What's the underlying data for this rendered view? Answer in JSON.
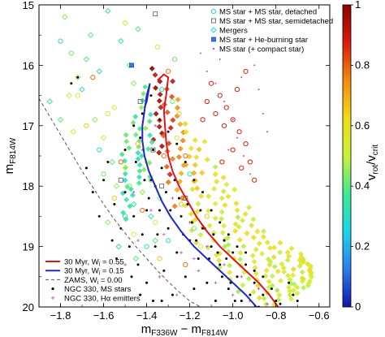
{
  "chart_data": {
    "type": "scatter",
    "xlabel": "m_F336W − m_F814W",
    "ylabel": "m_F814W",
    "colorbar_label": "v_rot/v_crit",
    "xlim": [
      -1.9,
      -0.55
    ],
    "ylim": [
      20,
      15
    ],
    "y_inverted": true,
    "x_ticks": [
      "−1.8",
      "−1.6",
      "−1.4",
      "−1.2",
      "−1.0",
      "−0.8",
      "−0.6"
    ],
    "y_ticks": [
      "15",
      "16",
      "17",
      "18",
      "19",
      "20"
    ],
    "colorbar_ticks": [
      "0",
      "0.2",
      "0.4",
      "0.6",
      "0.8",
      "1"
    ],
    "colorbar_range": [
      0,
      1
    ],
    "colorbar_colors": [
      "#1414a8",
      "#2a7df0",
      "#1fd6e8",
      "#3fe88f",
      "#c9f23a",
      "#f2dc1a",
      "#f58a0e",
      "#d81c0c",
      "#8b0000"
    ],
    "grid": false,
    "legend_top": {
      "placement": "top-right",
      "entries": [
        {
          "label": "MS star + MS star, detached",
          "marker": "circle-open"
        },
        {
          "label": "MS star + MS star, semidetached",
          "marker": "square-open"
        },
        {
          "label": "Mergers",
          "marker": "diamond-open"
        },
        {
          "label": "MS star + He-burning star",
          "marker": "square-filled"
        },
        {
          "label": "MS star (+ compact star)",
          "marker": "dot"
        }
      ]
    },
    "legend_bottom": {
      "placement": "bottom-left",
      "entries": [
        {
          "label": "30 Myr, W",
          "sub": "i",
          "tail": " = 0.55",
          "color": "#e0141e",
          "style": "solid"
        },
        {
          "label": "30 Myr, W",
          "sub": "i",
          "tail": " = 0.15",
          "color": "#1e28c8",
          "style": "solid"
        },
        {
          "label": "ZAMS, W",
          "sub": "i",
          "tail": " = 0.00",
          "color": "#555555",
          "style": "dashed"
        },
        {
          "label": "NGC 330, MS stars",
          "color": "#000000",
          "style": "dot"
        },
        {
          "label": "NGC 330, Hα emitters",
          "color": "#cc44cc",
          "style": "cross"
        }
      ]
    },
    "isochrones": [
      {
        "name": "30 Myr, W_i = 0.55",
        "color": "#e0141e",
        "style": "solid",
        "points": [
          [
            -0.79,
            20
          ],
          [
            -0.83,
            19.8
          ],
          [
            -0.88,
            19.6
          ],
          [
            -0.94,
            19.4
          ],
          [
            -1.0,
            19.2
          ],
          [
            -1.06,
            19.0
          ],
          [
            -1.12,
            18.75
          ],
          [
            -1.17,
            18.5
          ],
          [
            -1.21,
            18.25
          ],
          [
            -1.25,
            18.0
          ],
          [
            -1.28,
            17.75
          ],
          [
            -1.3,
            17.5
          ],
          [
            -1.31,
            17.25
          ],
          [
            -1.315,
            17.0
          ],
          [
            -1.32,
            16.75
          ],
          [
            -1.31,
            16.5
          ],
          [
            -1.3,
            16.2
          ],
          [
            -1.32,
            16.15
          ],
          [
            -1.35,
            16.25
          ]
        ]
      },
      {
        "name": "30 Myr, W_i = 0.15",
        "color": "#1e28c8",
        "style": "solid",
        "points": [
          [
            -0.89,
            20
          ],
          [
            -0.94,
            19.8
          ],
          [
            -1.0,
            19.6
          ],
          [
            -1.06,
            19.4
          ],
          [
            -1.12,
            19.2
          ],
          [
            -1.18,
            19.0
          ],
          [
            -1.24,
            18.75
          ],
          [
            -1.29,
            18.5
          ],
          [
            -1.33,
            18.25
          ],
          [
            -1.36,
            18.0
          ],
          [
            -1.39,
            17.75
          ],
          [
            -1.41,
            17.5
          ],
          [
            -1.42,
            17.25
          ],
          [
            -1.42,
            17.0
          ],
          [
            -1.41,
            16.75
          ],
          [
            -1.4,
            16.5
          ],
          [
            -1.385,
            16.3
          ],
          [
            -1.4,
            16.6
          ],
          [
            -1.41,
            16.7
          ]
        ]
      },
      {
        "name": "ZAMS, W_i = 0.00",
        "color": "#555555",
        "style": "dashed",
        "points": [
          [
            -1.9,
            16.55
          ],
          [
            -1.85,
            16.85
          ],
          [
            -1.8,
            17.15
          ],
          [
            -1.75,
            17.45
          ],
          [
            -1.7,
            17.75
          ],
          [
            -1.65,
            18.02
          ],
          [
            -1.6,
            18.3
          ],
          [
            -1.55,
            18.55
          ],
          [
            -1.5,
            18.78
          ],
          [
            -1.45,
            19.0
          ],
          [
            -1.4,
            19.2
          ],
          [
            -1.35,
            19.4
          ],
          [
            -1.3,
            19.58
          ],
          [
            -1.25,
            19.75
          ],
          [
            -1.2,
            19.9
          ],
          [
            -1.15,
            20.0
          ]
        ]
      }
    ],
    "ms_ms_detached": [
      [
        -1.8,
        15.6
      ],
      [
        -1.75,
        15.8
      ],
      [
        -1.72,
        16.5
      ],
      [
        -1.68,
        17.0
      ],
      [
        -1.65,
        16.2
      ],
      [
        -1.62,
        17.4
      ],
      [
        -1.6,
        17.8
      ],
      [
        -1.58,
        16.8
      ],
      [
        -1.55,
        18.2
      ],
      [
        -1.52,
        17.6
      ],
      [
        -1.5,
        18.5
      ],
      [
        -1.48,
        18.0
      ],
      [
        -1.46,
        18.8
      ],
      [
        -1.44,
        17.3
      ],
      [
        -1.42,
        18.4
      ],
      [
        -1.4,
        19.0
      ],
      [
        -1.38,
        17.9
      ],
      [
        -1.36,
        18.6
      ],
      [
        -1.34,
        19.2
      ],
      [
        -1.32,
        17.5
      ],
      [
        -1.3,
        18.9
      ],
      [
        -1.28,
        16.6
      ],
      [
        -1.26,
        17.2
      ],
      [
        -1.24,
        18.3
      ],
      [
        -1.22,
        19.3
      ],
      [
        -1.2,
        17.8
      ],
      [
        -1.18,
        18.7
      ],
      [
        -1.15,
        19.0
      ],
      [
        -1.12,
        18.5
      ],
      [
        -1.3,
        16.1
      ],
      [
        -1.33,
        16.4
      ],
      [
        -1.27,
        15.9
      ],
      [
        -1.35,
        15.7
      ],
      [
        -1.25,
        16.8
      ],
      [
        -1.22,
        17.5
      ]
    ],
    "ms_ms_semidetached": [
      [
        -1.36,
        15.15
      ],
      [
        -1.43,
        16.6
      ],
      [
        -1.37,
        17.4
      ],
      [
        -1.33,
        18.0
      ],
      [
        -1.52,
        17.9
      ],
      [
        -1.22,
        18.2
      ]
    ],
    "mergers": [
      [
        -1.85,
        16.6
      ],
      [
        -1.8,
        16.9
      ],
      [
        -1.78,
        15.2
      ],
      [
        -1.74,
        17.1
      ],
      [
        -1.7,
        16.4
      ],
      [
        -1.66,
        15.5
      ],
      [
        -1.64,
        16.9
      ],
      [
        -1.6,
        17.2
      ],
      [
        -1.58,
        15.1
      ],
      [
        -1.56,
        17.6
      ],
      [
        -1.54,
        18.0
      ],
      [
        -1.5,
        17.7
      ],
      [
        -1.46,
        18.3
      ],
      [
        -1.44,
        15.4
      ],
      [
        -1.42,
        18.1
      ],
      [
        -1.4,
        17.6
      ],
      [
        -1.38,
        18.5
      ],
      [
        -1.36,
        18.9
      ],
      [
        -1.34,
        18.2
      ],
      [
        -1.5,
        15.3
      ],
      [
        -1.52,
        15.6
      ],
      [
        -1.48,
        16.0
      ],
      [
        -1.46,
        16.3
      ],
      [
        -1.55,
        16.7
      ],
      [
        -1.62,
        16.1
      ],
      [
        -1.68,
        15.9
      ],
      [
        -1.72,
        16.2
      ],
      [
        -1.76,
        16.5
      ],
      [
        -1.53,
        19.0
      ],
      [
        -1.45,
        19.2
      ],
      [
        -1.58,
        18.6
      ]
    ],
    "ms_he_burning": [
      [
        -1.47,
        16.0
      ]
    ],
    "ms_compact_magenta": [
      [
        -1.12,
        16.1
      ],
      [
        -1.08,
        16.3
      ],
      [
        -1.04,
        16.6
      ],
      [
        -1.0,
        16.9
      ],
      [
        -0.98,
        17.2
      ],
      [
        -0.95,
        17.5
      ],
      [
        -0.92,
        17.8
      ],
      [
        -0.9,
        16.0
      ],
      [
        -0.88,
        16.4
      ],
      [
        -0.86,
        16.8
      ],
      [
        -0.84,
        17.1
      ],
      [
        -1.15,
        15.8
      ],
      [
        -1.06,
        15.9
      ],
      [
        -1.02,
        17.4
      ],
      [
        -0.96,
        16.2
      ]
    ],
    "ms_compact_red": [
      [
        -1.1,
        16.3
      ],
      [
        -1.06,
        16.5
      ],
      [
        -1.03,
        16.7
      ],
      [
        -1.0,
        16.9
      ],
      [
        -0.97,
        17.1
      ],
      [
        -0.94,
        17.3
      ],
      [
        -0.92,
        17.6
      ],
      [
        -0.9,
        17.9
      ],
      [
        -1.12,
        16.6
      ],
      [
        -1.08,
        16.8
      ],
      [
        -1.04,
        17.0
      ],
      [
        -1.0,
        17.4
      ],
      [
        -0.96,
        17.7
      ],
      [
        -0.94,
        16.1
      ],
      [
        -0.98,
        16.4
      ],
      [
        -1.14,
        16.9
      ],
      [
        -1.05,
        17.6
      ]
    ],
    "ngc330_halpha": [
      [
        -1.38,
        18.4
      ],
      [
        -1.32,
        18.8
      ],
      [
        -1.28,
        18.2
      ],
      [
        -1.24,
        19.1
      ],
      [
        -1.2,
        18.6
      ],
      [
        -1.16,
        19.4
      ],
      [
        -1.12,
        19.0
      ],
      [
        -1.08,
        19.6
      ],
      [
        -1.04,
        19.3
      ],
      [
        -1.0,
        19.8
      ],
      [
        -0.96,
        19.5
      ],
      [
        -0.92,
        19.9
      ],
      [
        -0.88,
        19.7
      ],
      [
        -1.44,
        18.9
      ],
      [
        -1.5,
        19.3
      ],
      [
        -1.34,
        19.5
      ],
      [
        -1.26,
        19.8
      ],
      [
        -1.18,
        19.2
      ],
      [
        -0.84,
        19.95
      ],
      [
        -1.3,
        17.8
      ],
      [
        -1.42,
        17.4
      ],
      [
        -1.36,
        17.0
      ],
      [
        -1.46,
        18.1
      ]
    ],
    "ngc330_ms_stars": [
      [
        -1.75,
        16.3
      ],
      [
        -1.72,
        16.2
      ],
      [
        -1.6,
        17.9
      ],
      [
        -1.55,
        18.3
      ],
      [
        -1.52,
        18.7
      ],
      [
        -1.5,
        18.1
      ],
      [
        -1.48,
        19.0
      ],
      [
        -1.46,
        18.5
      ],
      [
        -1.44,
        19.3
      ],
      [
        -1.42,
        18.8
      ],
      [
        -1.4,
        19.6
      ],
      [
        -1.38,
        17.9
      ],
      [
        -1.36,
        19.0
      ],
      [
        -1.34,
        18.4
      ],
      [
        -1.32,
        19.4
      ],
      [
        -1.3,
        18.7
      ],
      [
        -1.28,
        19.8
      ],
      [
        -1.26,
        19.1
      ],
      [
        -1.24,
        18.5
      ],
      [
        -1.22,
        19.5
      ],
      [
        -1.2,
        18.9
      ],
      [
        -1.18,
        19.7
      ],
      [
        -1.16,
        19.2
      ],
      [
        -1.14,
        18.7
      ],
      [
        -1.12,
        19.6
      ],
      [
        -1.1,
        19.0
      ],
      [
        -1.08,
        19.9
      ],
      [
        -1.06,
        19.3
      ],
      [
        -1.04,
        18.9
      ],
      [
        -1.02,
        19.7
      ],
      [
        -1.0,
        19.1
      ],
      [
        -0.98,
        19.5
      ],
      [
        -0.96,
        19.9
      ],
      [
        -0.94,
        19.3
      ],
      [
        -0.92,
        19.8
      ],
      [
        -0.9,
        19.6
      ],
      [
        -0.88,
        20.0
      ],
      [
        -0.86,
        19.8
      ],
      [
        -1.45,
        17.6
      ],
      [
        -1.43,
        17.2
      ],
      [
        -1.41,
        17.9
      ],
      [
        -1.39,
        18.2
      ],
      [
        -1.37,
        17.4
      ],
      [
        -1.35,
        18.8
      ],
      [
        -1.33,
        17.7
      ],
      [
        -1.31,
        18.1
      ],
      [
        -1.29,
        18.4
      ],
      [
        -1.27,
        17.9
      ],
      [
        -1.25,
        18.2
      ],
      [
        -1.23,
        18.8
      ],
      [
        -1.21,
        18.3
      ],
      [
        -1.19,
        18.6
      ],
      [
        -1.17,
        18.9
      ],
      [
        -1.15,
        18.4
      ],
      [
        -1.13,
        18.7
      ],
      [
        -1.11,
        19.2
      ],
      [
        -1.09,
        18.8
      ],
      [
        -1.07,
        19.1
      ],
      [
        -1.05,
        19.5
      ],
      [
        -1.03,
        19.2
      ],
      [
        -1.01,
        19.6
      ],
      [
        -0.99,
        19.9
      ],
      [
        -1.58,
        17.6
      ],
      [
        -1.56,
        18.9
      ],
      [
        -1.54,
        19.2
      ],
      [
        -1.62,
        18.5
      ],
      [
        -1.47,
        19.5
      ],
      [
        -1.43,
        19.8
      ],
      [
        -1.37,
        19.9
      ],
      [
        -1.33,
        19.9
      ],
      [
        -1.4,
        18.4
      ],
      [
        -1.36,
        18.0
      ],
      [
        -1.5,
        17.4
      ],
      [
        -1.46,
        17.0
      ],
      [
        -1.42,
        16.8
      ],
      [
        -1.38,
        16.5
      ],
      [
        -1.34,
        16.9
      ],
      [
        -1.3,
        17.1
      ],
      [
        -1.26,
        17.3
      ],
      [
        -1.22,
        17.6
      ],
      [
        -1.18,
        17.9
      ],
      [
        -1.14,
        18.1
      ],
      [
        -1.1,
        18.4
      ],
      [
        -1.06,
        18.6
      ],
      [
        -1.02,
        18.8
      ],
      [
        -0.98,
        19.0
      ],
      [
        -0.94,
        19.1
      ],
      [
        -0.9,
        19.4
      ],
      [
        -0.86,
        19.5
      ],
      [
        -0.82,
        19.7
      ],
      [
        -0.8,
        19.9
      ],
      [
        -0.78,
        19.95
      ],
      [
        -0.74,
        19.6
      ],
      [
        -0.72,
        19.8
      ],
      [
        -0.7,
        19.9
      ],
      [
        -1.65,
        18.1
      ],
      [
        -1.68,
        17.7
      ]
    ],
    "band_points": {
      "description": "",
      "samples": [
        {
          "x": -1.35,
          "y_min": 16.0,
          "y_max": 17.5,
          "v": 0.95
        },
        {
          "x": -1.3,
          "y_min": 16.2,
          "y_max": 18.0,
          "v": 0.85
        },
        {
          "x": -1.25,
          "y_min": 16.5,
          "y_max": 18.4,
          "v": 0.75
        },
        {
          "x": -1.2,
          "y_min": 16.9,
          "y_max": 18.8,
          "v": 0.65
        },
        {
          "x": -1.15,
          "y_min": 17.2,
          "y_max": 19.0,
          "v": 0.6
        },
        {
          "x": -1.1,
          "y_min": 17.5,
          "y_max": 19.2,
          "v": 0.55
        },
        {
          "x": -1.05,
          "y_min": 17.8,
          "y_max": 19.4,
          "v": 0.55
        },
        {
          "x": -1.0,
          "y_min": 18.0,
          "y_max": 19.6,
          "v": 0.55
        },
        {
          "x": -0.95,
          "y_min": 18.3,
          "y_max": 19.8,
          "v": 0.55
        },
        {
          "x": -0.9,
          "y_min": 18.5,
          "y_max": 19.9,
          "v": 0.55
        },
        {
          "x": -0.85,
          "y_min": 18.7,
          "y_max": 20.0,
          "v": 0.55
        },
        {
          "x": -0.8,
          "y_min": 18.9,
          "y_max": 20.0,
          "v": 0.55
        },
        {
          "x": -0.75,
          "y_min": 19.0,
          "y_max": 19.9,
          "v": 0.55
        },
        {
          "x": -0.7,
          "y_min": 19.1,
          "y_max": 19.8,
          "v": 0.55
        },
        {
          "x": -0.65,
          "y_min": 19.2,
          "y_max": 19.7,
          "v": 0.55
        },
        {
          "x": -1.4,
          "y_min": 16.3,
          "y_max": 17.9,
          "v": 0.4
        },
        {
          "x": -1.45,
          "y_min": 16.8,
          "y_max": 18.2,
          "v": 0.35
        },
        {
          "x": -1.5,
          "y_min": 17.1,
          "y_max": 18.6,
          "v": 0.35
        }
      ]
    }
  }
}
